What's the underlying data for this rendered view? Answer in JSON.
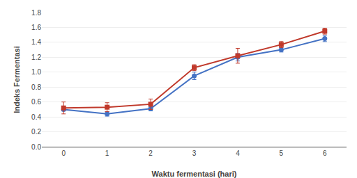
{
  "chart_data": {
    "type": "line",
    "xlabel": "Waktu fermentasi (hari)",
    "ylabel": "Indeks Fermentasi",
    "x": [
      0,
      1,
      2,
      3,
      4,
      5,
      6
    ],
    "series": [
      {
        "color": "#4472C4",
        "marker": "circle",
        "values": [
          0.5,
          0.44,
          0.51,
          0.95,
          1.2,
          1.3,
          1.45
        ],
        "errors": [
          0.02,
          0.03,
          0.03,
          0.05,
          0.05,
          0.03,
          0.04
        ]
      },
      {
        "color": "#C0392B",
        "marker": "square",
        "values": [
          0.52,
          0.53,
          0.57,
          1.06,
          1.22,
          1.37,
          1.55
        ],
        "errors": [
          0.08,
          0.06,
          0.07,
          0.04,
          0.1,
          0.04,
          0.04
        ]
      }
    ],
    "xlim": [
      -0.5,
      6.5
    ],
    "xticks": [
      0,
      1,
      2,
      3,
      4,
      5,
      6
    ],
    "ylim": [
      0.0,
      1.8
    ],
    "yticks": [
      {
        "value": 0.0,
        "label": "0.0"
      },
      0.2,
      0.4,
      0.6,
      0.8,
      {
        "value": 1.0,
        "label": "1.0"
      },
      1.2,
      1.4,
      1.6,
      1.8
    ],
    "grid": "y"
  }
}
